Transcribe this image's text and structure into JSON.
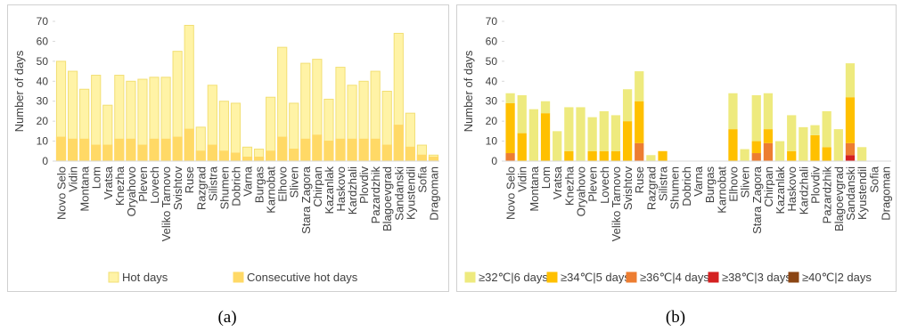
{
  "chart_data": [
    {
      "type": "bar",
      "barmode": "overlay",
      "caption": "(a)",
      "y_label": "Number of days",
      "categories": [
        "Novo Selo",
        "Vidin",
        "Montana",
        "Lom",
        "Vratsa",
        "Knezha",
        "Oryahovo",
        "Pleven",
        "Lovech",
        "Veliko Tarnovo",
        "Svishtov",
        "Ruse",
        "Razgrad",
        "Silistra",
        "Shumen",
        "Dobrich",
        "Varna",
        "Burgas",
        "Karnobat",
        "Elhovo",
        "Sliven",
        "Stara Zagora",
        "Chirpan",
        "Kazanlak",
        "Haskovo",
        "Kardzhali",
        "Plovdiv",
        "Pazardzhik",
        "Blagoevgrad",
        "Sandanski",
        "Kyustendil",
        "Sofia",
        "Dragoman"
      ],
      "series": [
        {
          "name": "Hot days",
          "color": "#fff3a6",
          "edge": "#f2df74",
          "values": [
            50,
            45,
            36,
            43,
            28,
            43,
            40,
            41,
            42,
            42,
            55,
            68,
            17,
            38,
            30,
            29,
            7,
            6,
            32,
            57,
            29,
            49,
            51,
            31,
            47,
            38,
            40,
            45,
            35,
            64,
            24,
            8,
            3
          ]
        },
        {
          "name": "Consecutive hot days",
          "color": "#ffd966",
          "edge": "#ffd966",
          "values": [
            12,
            11,
            11,
            8,
            8,
            11,
            11,
            8,
            11,
            11,
            12,
            16,
            5,
            8,
            5,
            4,
            2,
            2,
            5,
            12,
            6,
            11,
            13,
            10,
            11,
            11,
            11,
            11,
            8,
            18,
            7,
            3,
            2
          ]
        }
      ],
      "ylim": [
        0,
        70
      ],
      "yticks": [
        0,
        10,
        20,
        30,
        40,
        50,
        60,
        70
      ],
      "legend": "bottom"
    },
    {
      "type": "stacked_bar",
      "caption": "(b)",
      "y_label": "Number of days",
      "categories": [
        "Novo Selo",
        "Vidin",
        "Montana",
        "Lom",
        "Vratsa",
        "Knezha",
        "Oryahovo",
        "Pleven",
        "Lovech",
        "Veliko Tarnovo",
        "Svishtov",
        "Ruse",
        "Razgrad",
        "Silistra",
        "Shumen",
        "Dobrich",
        "Varna",
        "Burgas",
        "Karnobat",
        "Elhovo",
        "Sliven",
        "Stara Zagora",
        "Chirpan",
        "Kazanlak",
        "Haskovo",
        "Kardzhali",
        "Plovdiv",
        "Pazardzhik",
        "Blagoevgrad",
        "Sandanski",
        "Kyustendil",
        "Sofia",
        "Dragoman"
      ],
      "series": [
        {
          "name": "≥32℃|6 days",
          "color": "#eeea7e",
          "values": [
            5,
            19,
            26,
            6,
            15,
            22,
            27,
            17,
            20,
            18,
            16,
            15,
            3,
            0,
            0,
            0,
            0,
            0,
            0,
            18,
            6,
            23,
            18,
            10,
            18,
            17,
            5,
            18,
            16,
            17,
            7,
            0,
            0
          ]
        },
        {
          "name": "≥34℃|5 days",
          "color": "#ffc000",
          "values": [
            25,
            14,
            0,
            24,
            0,
            5,
            0,
            5,
            5,
            5,
            20,
            21,
            0,
            5,
            0,
            0,
            0,
            0,
            0,
            16,
            0,
            6,
            7,
            0,
            5,
            0,
            13,
            7,
            0,
            23,
            0,
            0,
            0
          ]
        },
        {
          "name": "≥36℃|4 days",
          "color": "#ed7d31",
          "values": [
            4,
            0,
            0,
            0,
            0,
            0,
            0,
            0,
            0,
            0,
            0,
            9,
            0,
            0,
            0,
            0,
            0,
            0,
            0,
            0,
            0,
            4,
            9,
            0,
            0,
            0,
            0,
            0,
            0,
            6,
            0,
            0,
            0
          ]
        },
        {
          "name": "≥38℃|3 days",
          "color": "#d42020",
          "values": [
            0,
            0,
            0,
            0,
            0,
            0,
            0,
            0,
            0,
            0,
            0,
            0,
            0,
            0,
            0,
            0,
            0,
            0,
            0,
            0,
            0,
            0,
            0,
            0,
            0,
            0,
            0,
            0,
            0,
            3,
            0,
            0,
            0
          ]
        },
        {
          "name": "≥40℃|2 days",
          "color": "#8b4513",
          "values": [
            0,
            0,
            0,
            0,
            0,
            0,
            0,
            0,
            0,
            0,
            0,
            0,
            0,
            0,
            0,
            0,
            0,
            0,
            0,
            0,
            0,
            0,
            0,
            0,
            0,
            0,
            0,
            0,
            0,
            0,
            0,
            0,
            0
          ]
        }
      ],
      "ylim": [
        0,
        70
      ],
      "yticks": [
        0,
        10,
        20,
        30,
        40,
        50,
        60,
        70
      ],
      "legend": "bottom"
    }
  ]
}
